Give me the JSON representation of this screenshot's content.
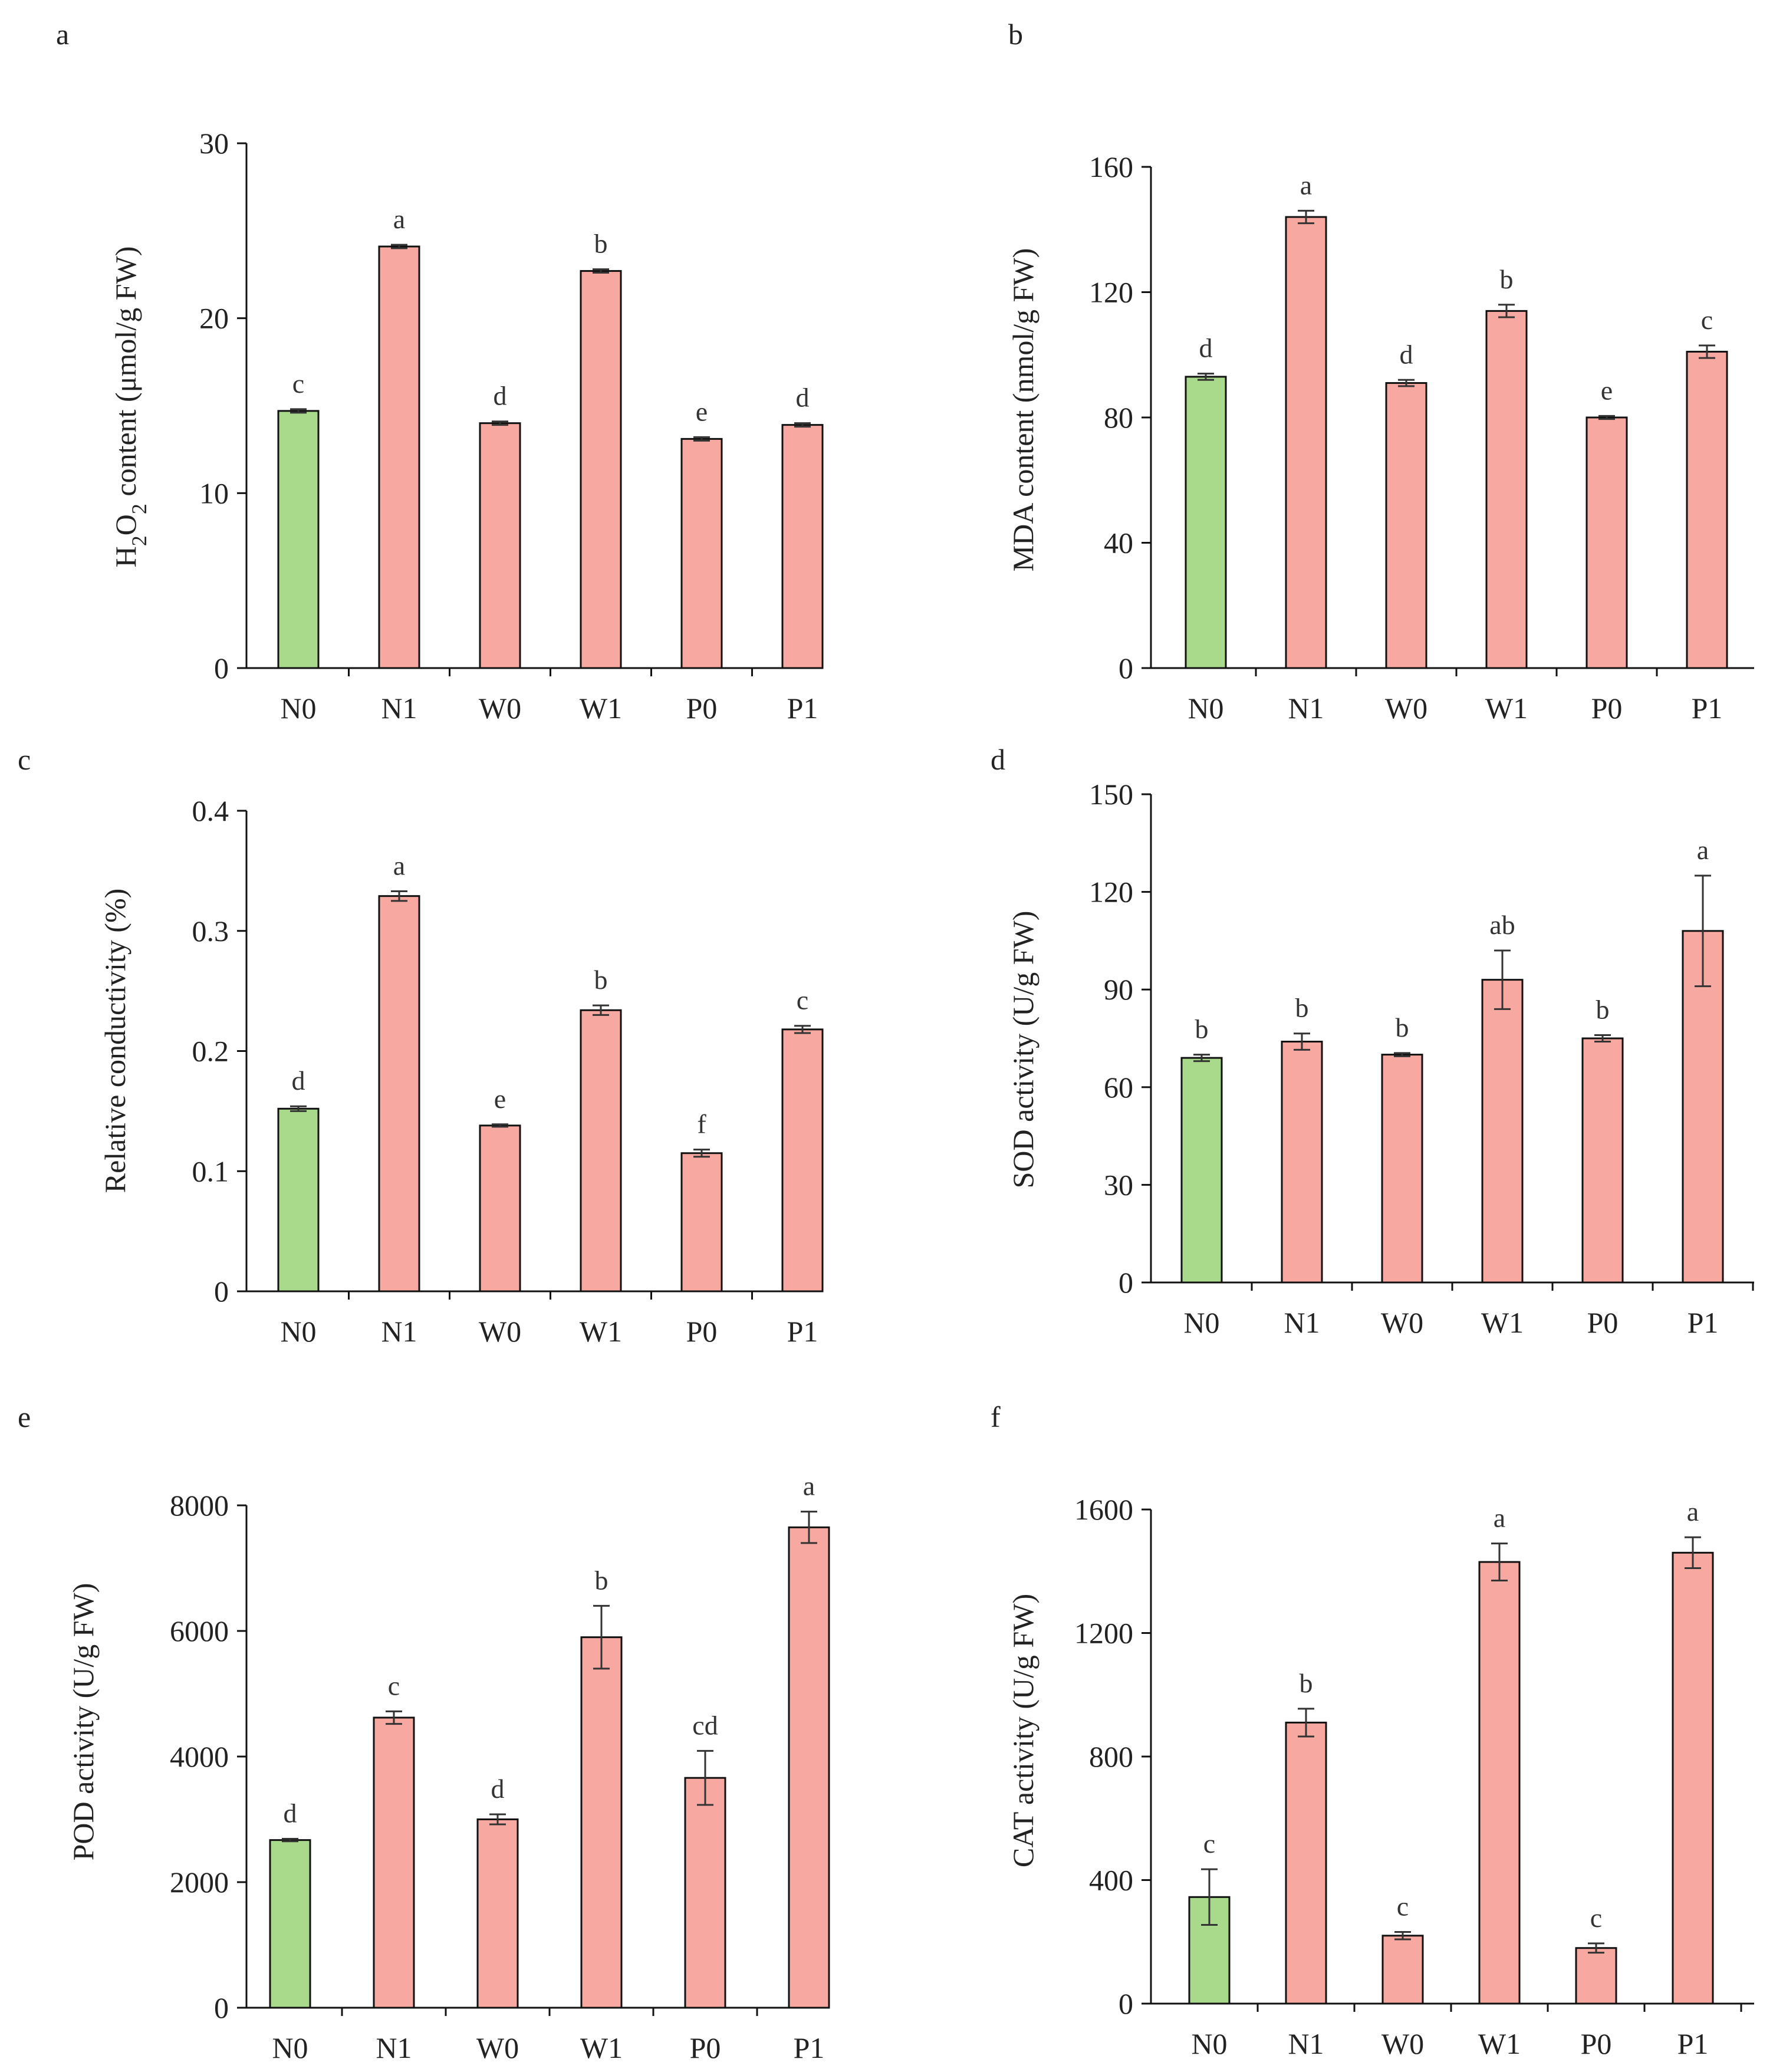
{
  "colors": {
    "control_bar": "#a9d98a",
    "treatment_bar": "#f7a9a1",
    "bar_stroke": "#111111",
    "axis": "#111111",
    "error_bar": "#333333"
  },
  "chart_data": [
    {
      "panel": "a",
      "type": "bar",
      "ylabel_main": "H",
      "ylabel_sub1": "2",
      "ylabel_mid": "O",
      "ylabel_sub2": "2",
      "ylabel_rest": " content (μmol/g FW)",
      "categories": [
        "N0",
        "N1",
        "W0",
        "W1",
        "P0",
        "P1"
      ],
      "values": [
        14.7,
        24.1,
        14.0,
        22.7,
        13.1,
        13.9
      ],
      "errors": [
        0.1,
        0.1,
        0.1,
        0.1,
        0.1,
        0.1
      ],
      "significance": [
        "c",
        "a",
        "d",
        "b",
        "e",
        "d"
      ],
      "control_index": 0,
      "ylim": [
        0,
        30
      ],
      "yticks": [
        0,
        10,
        20,
        30
      ]
    },
    {
      "panel": "b",
      "type": "bar",
      "ylabel_main": "MDA content (nmol/g FW)",
      "categories": [
        "N0",
        "N1",
        "W0",
        "W1",
        "P0",
        "P1"
      ],
      "values": [
        93,
        144,
        91,
        114,
        80,
        101
      ],
      "errors": [
        1,
        2,
        1,
        2,
        0.5,
        2
      ],
      "significance": [
        "d",
        "a",
        "d",
        "b",
        "e",
        "c"
      ],
      "control_index": 0,
      "ylim": [
        0,
        160
      ],
      "yticks": [
        0,
        40,
        80,
        120,
        160
      ]
    },
    {
      "panel": "c",
      "type": "bar",
      "ylabel_main": "Relative conductivity (%)",
      "categories": [
        "N0",
        "N1",
        "W0",
        "W1",
        "P0",
        "P1"
      ],
      "values": [
        0.152,
        0.329,
        0.138,
        0.234,
        0.115,
        0.218
      ],
      "errors": [
        0.002,
        0.004,
        0.001,
        0.004,
        0.003,
        0.003
      ],
      "significance": [
        "d",
        "a",
        "e",
        "b",
        "f",
        "c"
      ],
      "control_index": 0,
      "ylim": [
        0,
        0.4
      ],
      "yticks": [
        0,
        0.1,
        0.2,
        0.3,
        0.4
      ]
    },
    {
      "panel": "d",
      "type": "bar",
      "ylabel_main": "SOD activity (U/g FW)",
      "categories": [
        "N0",
        "N1",
        "W0",
        "W1",
        "P0",
        "P1"
      ],
      "values": [
        69,
        74,
        70,
        93,
        75,
        108
      ],
      "errors": [
        1,
        2.5,
        0.5,
        9,
        1,
        17
      ],
      "significance": [
        "b",
        "b",
        "b",
        "ab",
        "b",
        "a"
      ],
      "control_index": 0,
      "ylim": [
        0,
        150
      ],
      "yticks": [
        0,
        30,
        60,
        90,
        120,
        150
      ]
    },
    {
      "panel": "e",
      "type": "bar",
      "ylabel_main": "POD activity (U/g FW)",
      "categories": [
        "N0",
        "N1",
        "W0",
        "W1",
        "P0",
        "P1"
      ],
      "values": [
        2670,
        4620,
        3000,
        5900,
        3660,
        7650
      ],
      "errors": [
        20,
        100,
        80,
        500,
        430,
        250
      ],
      "significance": [
        "d",
        "c",
        "d",
        "b",
        "cd",
        "a"
      ],
      "control_index": 0,
      "ylim": [
        0,
        8000
      ],
      "yticks": [
        0,
        2000,
        4000,
        6000,
        8000
      ]
    },
    {
      "panel": "f",
      "type": "bar",
      "ylabel_main": "CAT activity (U/g FW)",
      "categories": [
        "N0",
        "N1",
        "W0",
        "W1",
        "P0",
        "P1"
      ],
      "values": [
        345,
        910,
        220,
        1430,
        180,
        1460
      ],
      "errors": [
        90,
        45,
        12,
        60,
        15,
        50
      ],
      "significance": [
        "c",
        "b",
        "c",
        "a",
        "c",
        "a"
      ],
      "control_index": 0,
      "ylim": [
        0,
        1600
      ],
      "yticks": [
        0,
        400,
        800,
        1200,
        1600
      ]
    }
  ]
}
